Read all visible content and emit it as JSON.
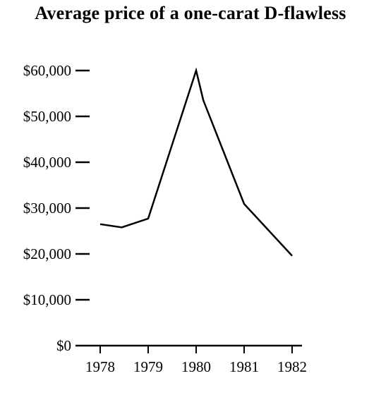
{
  "chart_data": {
    "type": "line",
    "title": "Average price of a one-carat D-flawless",
    "xlabel": "",
    "ylabel": "",
    "x_ticks": [
      1978,
      1979,
      1980,
      1981,
      1982
    ],
    "x_tick_labels": [
      "1978",
      "1979",
      "1980",
      "1981",
      "1982"
    ],
    "y_ticks": [
      0,
      10000,
      20000,
      30000,
      40000,
      50000,
      60000
    ],
    "y_tick_labels": [
      "$0",
      "$10,000",
      "$20,000",
      "$30,000",
      "$40,000",
      "$50,000",
      "$60,000"
    ],
    "xlim": [
      1977.5,
      1982.2
    ],
    "ylim": [
      0,
      60000
    ],
    "grid": false,
    "series": [
      {
        "x": [
          1978.0,
          1978.45,
          1979.0,
          1980.0,
          1980.15,
          1981.0,
          1982.0
        ],
        "y": [
          26500,
          25800,
          27700,
          60000,
          53500,
          30900,
          19600
        ]
      }
    ],
    "colors": {
      "line": "#000000",
      "axis": "#000000"
    }
  }
}
